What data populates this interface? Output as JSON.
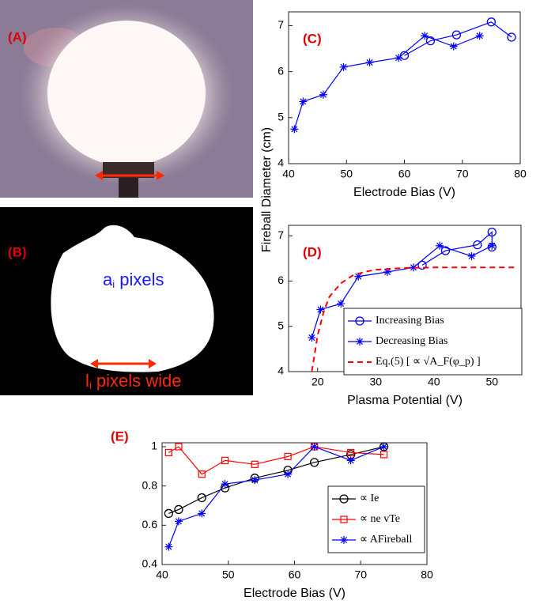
{
  "panels": {
    "a": {
      "label": "(A)"
    },
    "b": {
      "label": "(B)",
      "area_text": {
        "main": "a",
        "sub": "i",
        "rest": " pixels"
      },
      "width_text": {
        "main": "l",
        "sub": "i",
        "rest": " pixels wide"
      }
    }
  },
  "chart_data": [
    {
      "type": "line",
      "panel_label": "(C)",
      "xlabel": "Electrode Bias (V)",
      "ylabel": "Fireball Diameter (cm)",
      "xlim": [
        40,
        80
      ],
      "xticks": [
        40,
        50,
        60,
        70,
        80
      ],
      "ylim": [
        4,
        7.3
      ],
      "yticks": [
        4,
        5,
        6,
        7
      ],
      "series": [
        {
          "name": "Increasing Bias",
          "color": "#0000ff",
          "marker": "circle",
          "x": [
            60,
            64.5,
            69,
            75,
            78.5
          ],
          "values": [
            6.35,
            6.67,
            6.8,
            7.08,
            6.75
          ]
        },
        {
          "name": "Decreasing Bias",
          "color": "#0000ff",
          "marker": "star",
          "x": [
            41,
            42.5,
            46,
            49.5,
            54,
            59,
            63.5,
            68.5,
            73
          ],
          "values": [
            4.75,
            5.35,
            5.5,
            6.1,
            6.2,
            6.3,
            6.78,
            6.55,
            6.78
          ]
        }
      ]
    },
    {
      "type": "line",
      "panel_label": "(D)",
      "xlabel": "Plasma Potential (V)",
      "xlim": [
        15,
        55
      ],
      "xticks": [
        20,
        30,
        40,
        50
      ],
      "ylim": [
        4,
        7.23
      ],
      "yticks": [
        4,
        5,
        6,
        7
      ],
      "legend": "lower right",
      "series": [
        {
          "name": "Increasing Bias",
          "color": "#0000ff",
          "marker": "circle",
          "x": [
            38,
            42,
            47.5,
            50,
            50
          ],
          "values": [
            6.35,
            6.67,
            6.8,
            7.08,
            6.75
          ]
        },
        {
          "name": "Decreasing Bias",
          "color": "#0000ff",
          "marker": "star",
          "x": [
            19,
            20.5,
            24,
            27,
            32,
            36.5,
            41,
            46.5,
            50
          ],
          "values": [
            4.75,
            5.37,
            5.5,
            6.1,
            6.2,
            6.3,
            6.78,
            6.55,
            6.78
          ]
        },
        {
          "name": "Eq.(5)    [ ∝ √A_F(φ_p) ]",
          "color": "#ff0000",
          "dashed": true,
          "x": [
            19,
            20,
            21,
            22,
            24,
            26,
            28,
            30,
            35,
            40,
            54
          ],
          "values": [
            4,
            4.8,
            5.3,
            5.65,
            5.95,
            6.12,
            6.2,
            6.25,
            6.29,
            6.3,
            6.3
          ]
        }
      ]
    },
    {
      "type": "line",
      "panel_label": "(E)",
      "xlabel": "Electrode Bias (V)",
      "xlim": [
        40,
        80
      ],
      "xticks": [
        40,
        50,
        60,
        70,
        80
      ],
      "ylim": [
        0.4,
        1.02
      ],
      "yticks": [
        0.4,
        0.6,
        0.8,
        1
      ],
      "legend": "lower right",
      "series": [
        {
          "name": "∝ Ie",
          "color": "#000000",
          "marker": "circle",
          "x": [
            41,
            42.5,
            46,
            49.5,
            54,
            59,
            63,
            68.5,
            73.5
          ],
          "values": [
            0.66,
            0.68,
            0.74,
            0.79,
            0.84,
            0.88,
            0.92,
            0.96,
            1.0
          ]
        },
        {
          "name": "∝ ne vTe",
          "color": "#ff0000",
          "marker": "square",
          "x": [
            41,
            42.5,
            46,
            49.5,
            54,
            59,
            63,
            68.5,
            73.5
          ],
          "values": [
            0.97,
            1.0,
            0.86,
            0.93,
            0.91,
            0.95,
            1.0,
            0.97,
            0.96
          ]
        },
        {
          "name": "∝ AFireball",
          "color": "#0000ff",
          "marker": "star",
          "x": [
            41,
            42.5,
            46,
            49.5,
            54,
            59,
            63,
            68.5,
            73.5
          ],
          "values": [
            0.49,
            0.62,
            0.66,
            0.81,
            0.83,
            0.86,
            1.0,
            0.93,
            1.0
          ]
        }
      ]
    }
  ]
}
